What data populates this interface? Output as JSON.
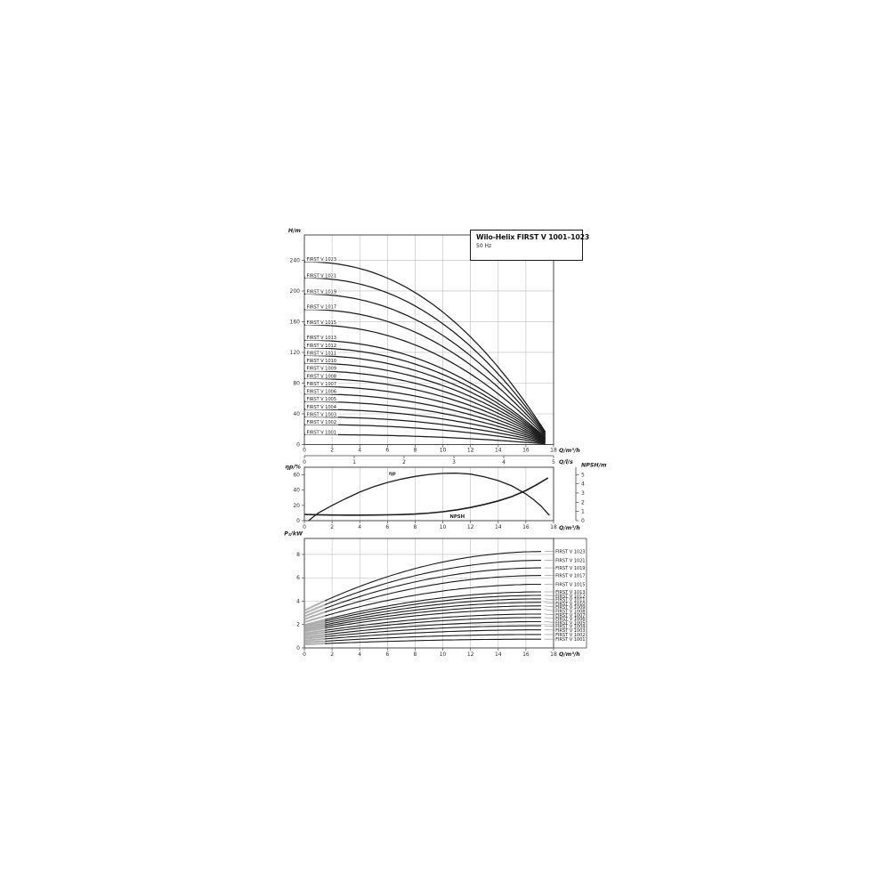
{
  "colors": {
    "curve": "#1c1c1c",
    "grid": "#bdbdbd",
    "frame": "#4a4a4a",
    "text": "#2e2e2e",
    "hatch": "#a3a3a3",
    "leader": "#8a8a8a"
  },
  "legend_box": {
    "title": "Wilo-Helix FIRST V 1001–1023",
    "subtitle": "50 Hz"
  },
  "chart_data": [
    {
      "id": "head",
      "type": "line",
      "ylabel": "H/m",
      "xlabel": "Q/m³/h",
      "xlabel_secondary": "Q/l/s",
      "xlim": [
        0,
        18
      ],
      "ylim": [
        0,
        273
      ],
      "xticks": [
        0,
        2,
        4,
        6,
        8,
        10,
        12,
        14,
        16,
        18
      ],
      "yticks": [
        0,
        40,
        80,
        120,
        160,
        200,
        240
      ],
      "xticks_secondary": [
        0,
        1,
        2,
        3,
        4,
        5
      ],
      "q_end": 17.4,
      "droop_exponent": 2.2,
      "grid": "both",
      "series": [
        {
          "label": "FIRST V 1023",
          "h0": 238,
          "h_end": 16.5
        },
        {
          "label": "FIRST V 1021",
          "h0": 217,
          "h_end": 15.2
        },
        {
          "label": "FIRST V 1019",
          "h0": 196,
          "h_end": 13.8
        },
        {
          "label": "FIRST V 1017",
          "h0": 176,
          "h_end": 12.4
        },
        {
          "label": "FIRST V 1015",
          "h0": 156,
          "h_end": 10.9
        },
        {
          "label": "FIRST V 1013",
          "h0": 136,
          "h_end": 9.5
        },
        {
          "label": "FIRST V 1012",
          "h0": 126,
          "h_end": 8.8
        },
        {
          "label": "FIRST V 1011",
          "h0": 116,
          "h_end": 8.1
        },
        {
          "label": "FIRST V 1010",
          "h0": 106,
          "h_end": 7.4
        },
        {
          "label": "FIRST V 1009",
          "h0": 96,
          "h_end": 6.7
        },
        {
          "label": "FIRST V 1008",
          "h0": 86,
          "h_end": 6.0
        },
        {
          "label": "FIRST V 1007",
          "h0": 76,
          "h_end": 5.3
        },
        {
          "label": "FIRST V 1006",
          "h0": 66,
          "h_end": 4.6
        },
        {
          "label": "FIRST V 1005",
          "h0": 56,
          "h_end": 3.9
        },
        {
          "label": "FIRST V 1004",
          "h0": 46,
          "h_end": 3.2
        },
        {
          "label": "FIRST V 1003",
          "h0": 36,
          "h_end": 2.4
        },
        {
          "label": "FIRST V 1002",
          "h0": 26,
          "h_end": 1.6
        },
        {
          "label": "FIRST V 1001",
          "h0": 13,
          "h_end": 0.8
        }
      ]
    },
    {
      "id": "eff_npsh",
      "type": "line",
      "ylabel_left": "ηp/%",
      "ylabel_right": "NPSH/m",
      "xlabel": "Q/m³/h",
      "xlim": [
        0,
        18
      ],
      "ylim_left": [
        0,
        70
      ],
      "ylim_right": [
        0,
        5.8
      ],
      "xticks": [
        0,
        2,
        4,
        6,
        8,
        10,
        12,
        14,
        16,
        18
      ],
      "yticks_left": [
        0,
        20,
        40,
        60
      ],
      "yticks_right": [
        0,
        1,
        2,
        3,
        4,
        5
      ],
      "grid": "vertical",
      "series": [
        {
          "label": "ηp",
          "axis": "left",
          "label_pos": [
            6.1,
            60
          ],
          "points": [
            [
              0.3,
              0
            ],
            [
              1,
              10
            ],
            [
              2,
              20
            ],
            [
              3,
              29
            ],
            [
              4,
              37.5
            ],
            [
              5,
              44.5
            ],
            [
              6,
              50
            ],
            [
              7,
              54.5
            ],
            [
              8,
              58
            ],
            [
              9,
              60.5
            ],
            [
              10,
              62
            ],
            [
              11,
              62.3
            ],
            [
              12,
              61
            ],
            [
              13,
              57.5
            ],
            [
              14,
              52.5
            ],
            [
              15,
              45.5
            ],
            [
              16,
              35
            ],
            [
              16.6,
              27
            ],
            [
              17.1,
              19
            ],
            [
              17.5,
              11
            ],
            [
              17.7,
              7
            ]
          ]
        },
        {
          "label": "NPSH",
          "axis": "right",
          "label_pos": [
            10.5,
            0.28
          ],
          "points": [
            [
              0,
              0.68
            ],
            [
              1,
              0.64
            ],
            [
              2,
              0.61
            ],
            [
              3,
              0.6
            ],
            [
              4,
              0.6
            ],
            [
              5,
              0.61
            ],
            [
              6,
              0.63
            ],
            [
              7,
              0.66
            ],
            [
              8,
              0.72
            ],
            [
              9,
              0.82
            ],
            [
              10,
              0.97
            ],
            [
              11,
              1.17
            ],
            [
              12,
              1.43
            ],
            [
              13,
              1.76
            ],
            [
              14,
              2.15
            ],
            [
              15,
              2.62
            ],
            [
              16,
              3.28
            ],
            [
              16.8,
              3.92
            ],
            [
              17.6,
              4.65
            ]
          ]
        }
      ]
    },
    {
      "id": "power",
      "type": "line",
      "ylabel": "P₂/kW",
      "xlabel": "Q/m³/h",
      "xlim": [
        0,
        18
      ],
      "ylim": [
        0,
        9.37
      ],
      "xticks": [
        0,
        2,
        4,
        6,
        8,
        10,
        12,
        14,
        16,
        18
      ],
      "yticks": [
        0,
        2,
        4,
        6,
        8
      ],
      "q_end": 17.3,
      "min_flow_hatch_to": 1.6,
      "grid": "both",
      "series": [
        {
          "label": "FIRST V 1023",
          "p0": 3.2,
          "p_end": 8.25
        },
        {
          "label": "FIRST V 1021",
          "p0": 2.95,
          "p_end": 7.5
        },
        {
          "label": "FIRST V 1019",
          "p0": 2.7,
          "p_end": 6.85
        },
        {
          "label": "FIRST V 1017",
          "p0": 2.45,
          "p_end": 6.2
        },
        {
          "label": "FIRST V 1015",
          "p0": 2.2,
          "p_end": 5.45
        },
        {
          "label": "FIRST V 1013",
          "p0": 1.95,
          "p_end": 4.8
        },
        {
          "label": "FIRST V 1012",
          "p0": 1.85,
          "p_end": 4.5
        },
        {
          "label": "FIRST V 1011",
          "p0": 1.72,
          "p_end": 4.2
        },
        {
          "label": "FIRST V 1010",
          "p0": 1.6,
          "p_end": 3.9
        },
        {
          "label": "FIRST V 1009",
          "p0": 1.5,
          "p_end": 3.6
        },
        {
          "label": "FIRST V 1008",
          "p0": 1.38,
          "p_end": 3.3
        },
        {
          "label": "FIRST V 1007",
          "p0": 1.22,
          "p_end": 2.9
        },
        {
          "label": "FIRST V 1006",
          "p0": 1.08,
          "p_end": 2.6
        },
        {
          "label": "FIRST V 1005",
          "p0": 0.92,
          "p_end": 2.25
        },
        {
          "label": "FIRST V 1004",
          "p0": 0.78,
          "p_end": 1.9
        },
        {
          "label": "FIRST V 1003",
          "p0": 0.62,
          "p_end": 1.55
        },
        {
          "label": "FIRST V 1002",
          "p0": 0.46,
          "p_end": 1.15
        },
        {
          "label": "FIRST V 1001",
          "p0": 0.3,
          "p_end": 0.75
        }
      ]
    }
  ]
}
